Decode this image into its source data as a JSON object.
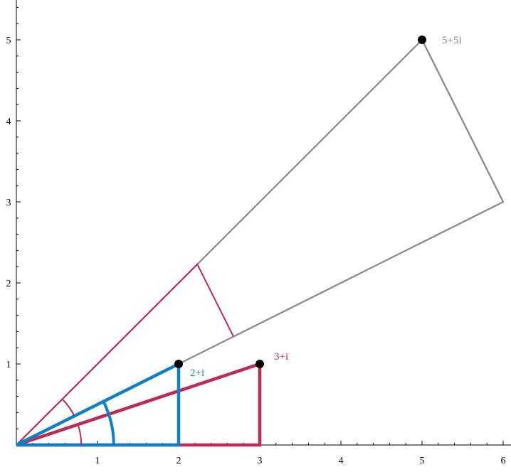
{
  "chart_data": {
    "type": "diagram",
    "title": "",
    "xlabel": "",
    "ylabel": "",
    "xlim": [
      0,
      6
    ],
    "ylim": [
      0,
      5.5
    ],
    "x_ticks": [
      "1",
      "2",
      "3",
      "4",
      "5",
      "6"
    ],
    "y_ticks": [
      "1",
      "2",
      "3",
      "4",
      "5"
    ],
    "grid": false,
    "points": [
      {
        "label": "2+i",
        "x": 2,
        "y": 1,
        "color": "#0f7fc7"
      },
      {
        "label": "3+i",
        "x": 3,
        "y": 1,
        "color": "#bd2a55"
      },
      {
        "label": "5+5i",
        "x": 5,
        "y": 5,
        "color": "#888888"
      }
    ],
    "colors": {
      "blue": "#0f7fc7",
      "crimson": "#bd2a55",
      "gray": "#888888",
      "axis": "#000000"
    }
  }
}
